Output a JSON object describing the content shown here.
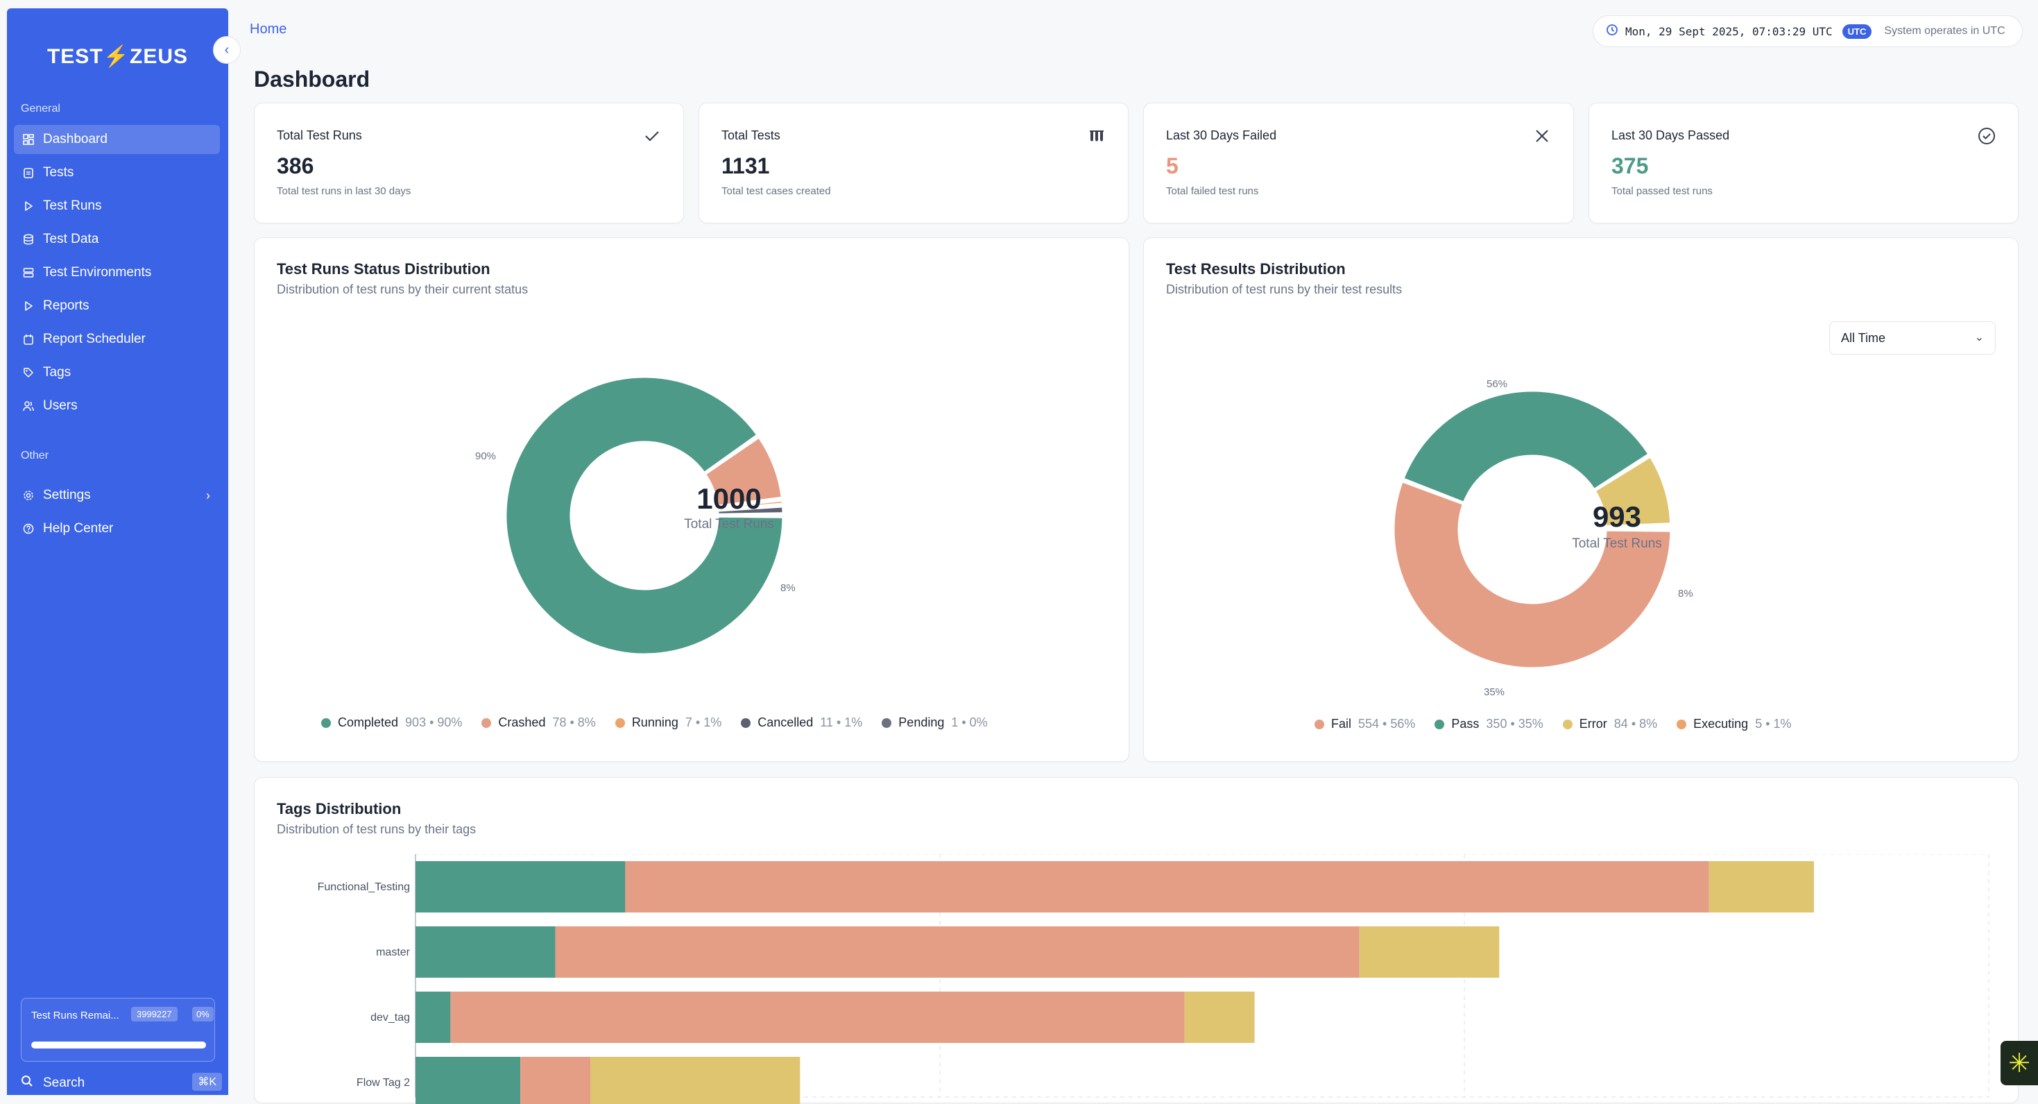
{
  "brand": {
    "logo_left": "TEST",
    "logo_bolt": "⚡",
    "logo_right": "ZEUS"
  },
  "sidebar": {
    "section_general": "General",
    "section_other": "Other",
    "items": [
      {
        "label": "Dashboard",
        "icon": "dashboard-icon"
      },
      {
        "label": "Tests",
        "icon": "clipboard-icon"
      },
      {
        "label": "Test Runs",
        "icon": "play-icon"
      },
      {
        "label": "Test Data",
        "icon": "database-icon"
      },
      {
        "label": "Test Environments",
        "icon": "server-icon"
      },
      {
        "label": "Reports",
        "icon": "play-icon"
      },
      {
        "label": "Report Scheduler",
        "icon": "calendar-icon"
      },
      {
        "label": "Tags",
        "icon": "tag-icon"
      },
      {
        "label": "Users",
        "icon": "users-icon"
      }
    ],
    "other_items": [
      {
        "label": "Settings",
        "icon": "gear-icon"
      },
      {
        "label": "Help Center",
        "icon": "help-icon"
      }
    ],
    "quota": {
      "label": "Test Runs Remai...",
      "count": "3999227",
      "percent": "0%",
      "progress": 0.0
    },
    "search": {
      "label": "Search",
      "shortcut": "⌘K"
    }
  },
  "header": {
    "breadcrumb": "Home",
    "datetime": "Mon, 29 Sept 2025, 07:03:29 UTC",
    "tz_badge": "UTC",
    "tz_note": "System operates in UTC"
  },
  "page_title": "Dashboard",
  "stats": [
    {
      "title": "Total Test Runs",
      "value": "386",
      "subtitle": "Total test runs in last 30 days",
      "icon": "check-icon",
      "color": "#1d2433"
    },
    {
      "title": "Total Tests",
      "value": "1131",
      "subtitle": "Total test cases created",
      "icon": "flask-icon",
      "color": "#1d2433"
    },
    {
      "title": "Last 30 Days Failed",
      "value": "5",
      "subtitle": "Total failed test runs",
      "icon": "x-icon",
      "color": "#e8967c"
    },
    {
      "title": "Last 30 Days Passed",
      "value": "375",
      "subtitle": "Total passed test runs",
      "icon": "check-circle-icon",
      "color": "#4e9a89"
    }
  ],
  "status_panel": {
    "title": "Test Runs Status Distribution",
    "subtitle": "Distribution of test runs by their current status",
    "center_value": "1000",
    "center_label": "Total Test Runs",
    "callouts": [
      "90%",
      "8%"
    ]
  },
  "results_panel": {
    "title": "Test Results Distribution",
    "subtitle": "Distribution of test runs by their test results",
    "filter": "All Time",
    "center_value": "993",
    "center_label": "Total Test Runs",
    "callouts": [
      "56%",
      "35%",
      "8%"
    ]
  },
  "tags_panel": {
    "title": "Tags Distribution",
    "subtitle": "Distribution of test runs by their tags"
  },
  "colors": {
    "primary": "#3b63e6",
    "pass": "#4e9a89",
    "fail": "#e59e86",
    "error": "#e0c571",
    "executing": "#eca36c",
    "cancelled": "#5c6070",
    "pending": "#6b7180"
  },
  "chart_data": [
    {
      "type": "pie",
      "title": "Test Runs Status Distribution",
      "categories": [
        "Completed",
        "Crashed",
        "Running",
        "Cancelled",
        "Pending"
      ],
      "values": [
        903,
        78,
        7,
        11,
        1
      ],
      "labels": [
        "903 • 90%",
        "78 • 8%",
        "7 • 1%",
        "11 • 1%",
        "1 • 0%"
      ],
      "colors": [
        "#4e9a89",
        "#e59e86",
        "#eca36c",
        "#5c6070",
        "#6b7180"
      ],
      "legend": "bottom"
    },
    {
      "type": "pie",
      "title": "Test Results Distribution",
      "categories": [
        "Fail",
        "Pass",
        "Error",
        "Executing"
      ],
      "values": [
        554,
        350,
        84,
        5
      ],
      "labels": [
        "554 • 56%",
        "350 • 35%",
        "84 • 8%",
        "5 • 1%"
      ],
      "colors": [
        "#e59e86",
        "#4e9a89",
        "#e0c571",
        "#eca36c"
      ],
      "legend": "bottom"
    },
    {
      "type": "bar",
      "title": "Tags Distribution",
      "orientation": "horizontal",
      "stacked": true,
      "categories": [
        "Functional_Testing",
        "master",
        "dev_tag",
        "Flow Tag 2"
      ],
      "series": [
        {
          "name": "Pass",
          "values": [
            60,
            40,
            10,
            30
          ],
          "color": "#4e9a89"
        },
        {
          "name": "Fail",
          "values": [
            310,
            230,
            210,
            20
          ],
          "color": "#e59e86"
        },
        {
          "name": "Error",
          "values": [
            30,
            40,
            20,
            60
          ],
          "color": "#e0c571"
        }
      ],
      "xlim": [
        0,
        450
      ],
      "grid": true
    }
  ]
}
